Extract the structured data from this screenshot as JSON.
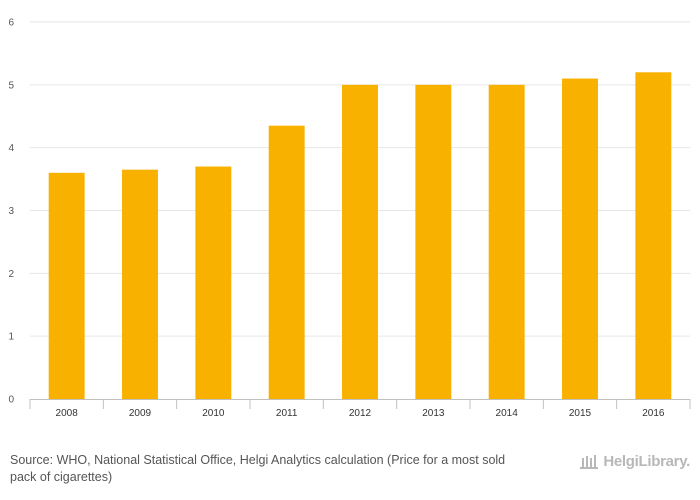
{
  "chart_data": {
    "type": "bar",
    "categories": [
      "2008",
      "2009",
      "2010",
      "2011",
      "2012",
      "2013",
      "2014",
      "2015",
      "2016"
    ],
    "values": [
      3.6,
      3.65,
      3.7,
      4.35,
      5.0,
      5.0,
      5.0,
      5.1,
      5.2
    ],
    "title": "",
    "xlabel": "",
    "ylabel": "",
    "ylim": [
      0,
      6
    ],
    "yticks": [
      "0",
      "1",
      "2",
      "3",
      "4",
      "5",
      "6"
    ],
    "grid": true,
    "bar_color": "#f9b100"
  },
  "footer": {
    "source_label": "Source:",
    "source_text": "WHO, National Statistical Office, Helgi Analytics calculation (Price for a most sold pack of cigarettes)",
    "logo_text": "HelgiLibrary."
  }
}
